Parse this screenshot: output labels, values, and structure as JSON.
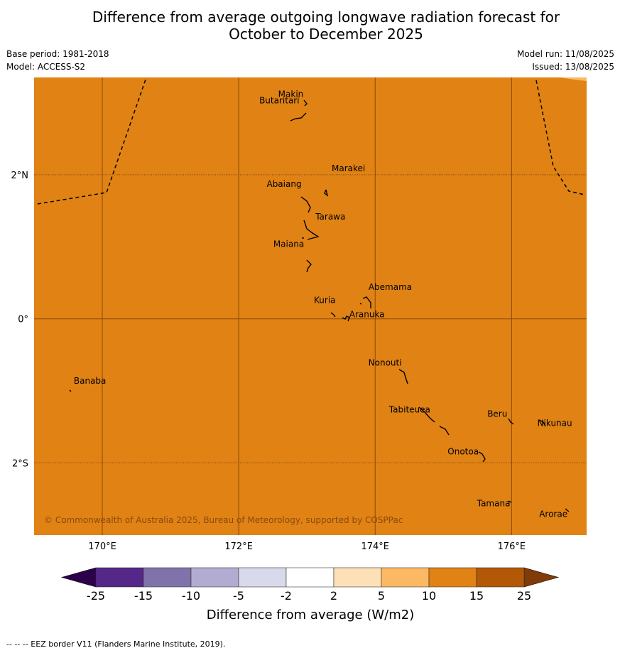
{
  "title": {
    "line1": "Difference from average outgoing longwave radiation forecast for",
    "line2": "October to December 2025"
  },
  "meta": {
    "base_period": "Base period: 1981-2018",
    "model": "Model: ACCESS-S2",
    "model_run": "Model run: 11/08/2025",
    "issued": "Issued: 13/08/2025"
  },
  "map": {
    "fill_color": "#e08214",
    "region_colors": [
      "#e08214",
      "#fdb863"
    ],
    "lon_range": [
      169,
      177.1
    ],
    "lat_range": [
      -3.0,
      3.35
    ],
    "lon_ticks": [
      {
        "value": 170,
        "label": "170°E"
      },
      {
        "value": 172,
        "label": "172°E"
      },
      {
        "value": 174,
        "label": "174°E"
      },
      {
        "value": 176,
        "label": "176°E"
      }
    ],
    "lat_ticks": [
      {
        "value": 2,
        "label": "2°N"
      },
      {
        "value": 0,
        "label": "0°"
      },
      {
        "value": -2,
        "label": "2°S"
      }
    ],
    "places": [
      {
        "name": "Makin",
        "lon": 172.98,
        "lat": 3.13
      },
      {
        "name": "Butaritari",
        "lon": 172.9,
        "lat": 3.08
      },
      {
        "name": "Marakei",
        "lon": 173.3,
        "lat": 2.0
      },
      {
        "name": "Abaiang",
        "lon": 172.9,
        "lat": 1.85
      },
      {
        "name": "Tarawa",
        "lon": 173.0,
        "lat": 1.38
      },
      {
        "name": "Maiana",
        "lon": 173.0,
        "lat": 1.0
      },
      {
        "name": "Abemama",
        "lon": 173.85,
        "lat": 0.4
      },
      {
        "name": "Kuria",
        "lon": 173.42,
        "lat": 0.22
      },
      {
        "name": "Aranuka",
        "lon": 173.62,
        "lat": 0.16
      },
      {
        "name": "Nonouti",
        "lon": 174.42,
        "lat": -0.65
      },
      {
        "name": "Banaba",
        "lon": 169.53,
        "lat": -0.86
      },
      {
        "name": "Tabiteuea",
        "lon": 174.85,
        "lat": -1.3
      },
      {
        "name": "Beru",
        "lon": 176.0,
        "lat": -1.32
      },
      {
        "name": "Nikunau",
        "lon": 176.45,
        "lat": -1.35
      },
      {
        "name": "Onotoa",
        "lon": 175.56,
        "lat": -1.8
      },
      {
        "name": "Tamana",
        "lon": 175.98,
        "lat": -2.5
      },
      {
        "name": "Arorae",
        "lon": 176.82,
        "lat": -2.65
      }
    ],
    "copyright": "© Commonwealth of Australia 2025, Bureau of Meteorology, supported by COSPPac"
  },
  "colorbar": {
    "title": "Difference from average (W/m2)",
    "ticks": [
      "-25",
      "-15",
      "-10",
      "-5",
      "-2",
      "2",
      "5",
      "10",
      "15",
      "25"
    ],
    "colors": [
      "#542788",
      "#8073ac",
      "#b2abd2",
      "#d8daeb",
      "#ffffff",
      "#fee0b6",
      "#fdb863",
      "#e08214",
      "#b35806"
    ],
    "extend_low": "#2d004b",
    "extend_high": "#7f3b08"
  },
  "footnote": "--  --  -- EEZ border V11 (Flanders Marine Institute, 2019)."
}
